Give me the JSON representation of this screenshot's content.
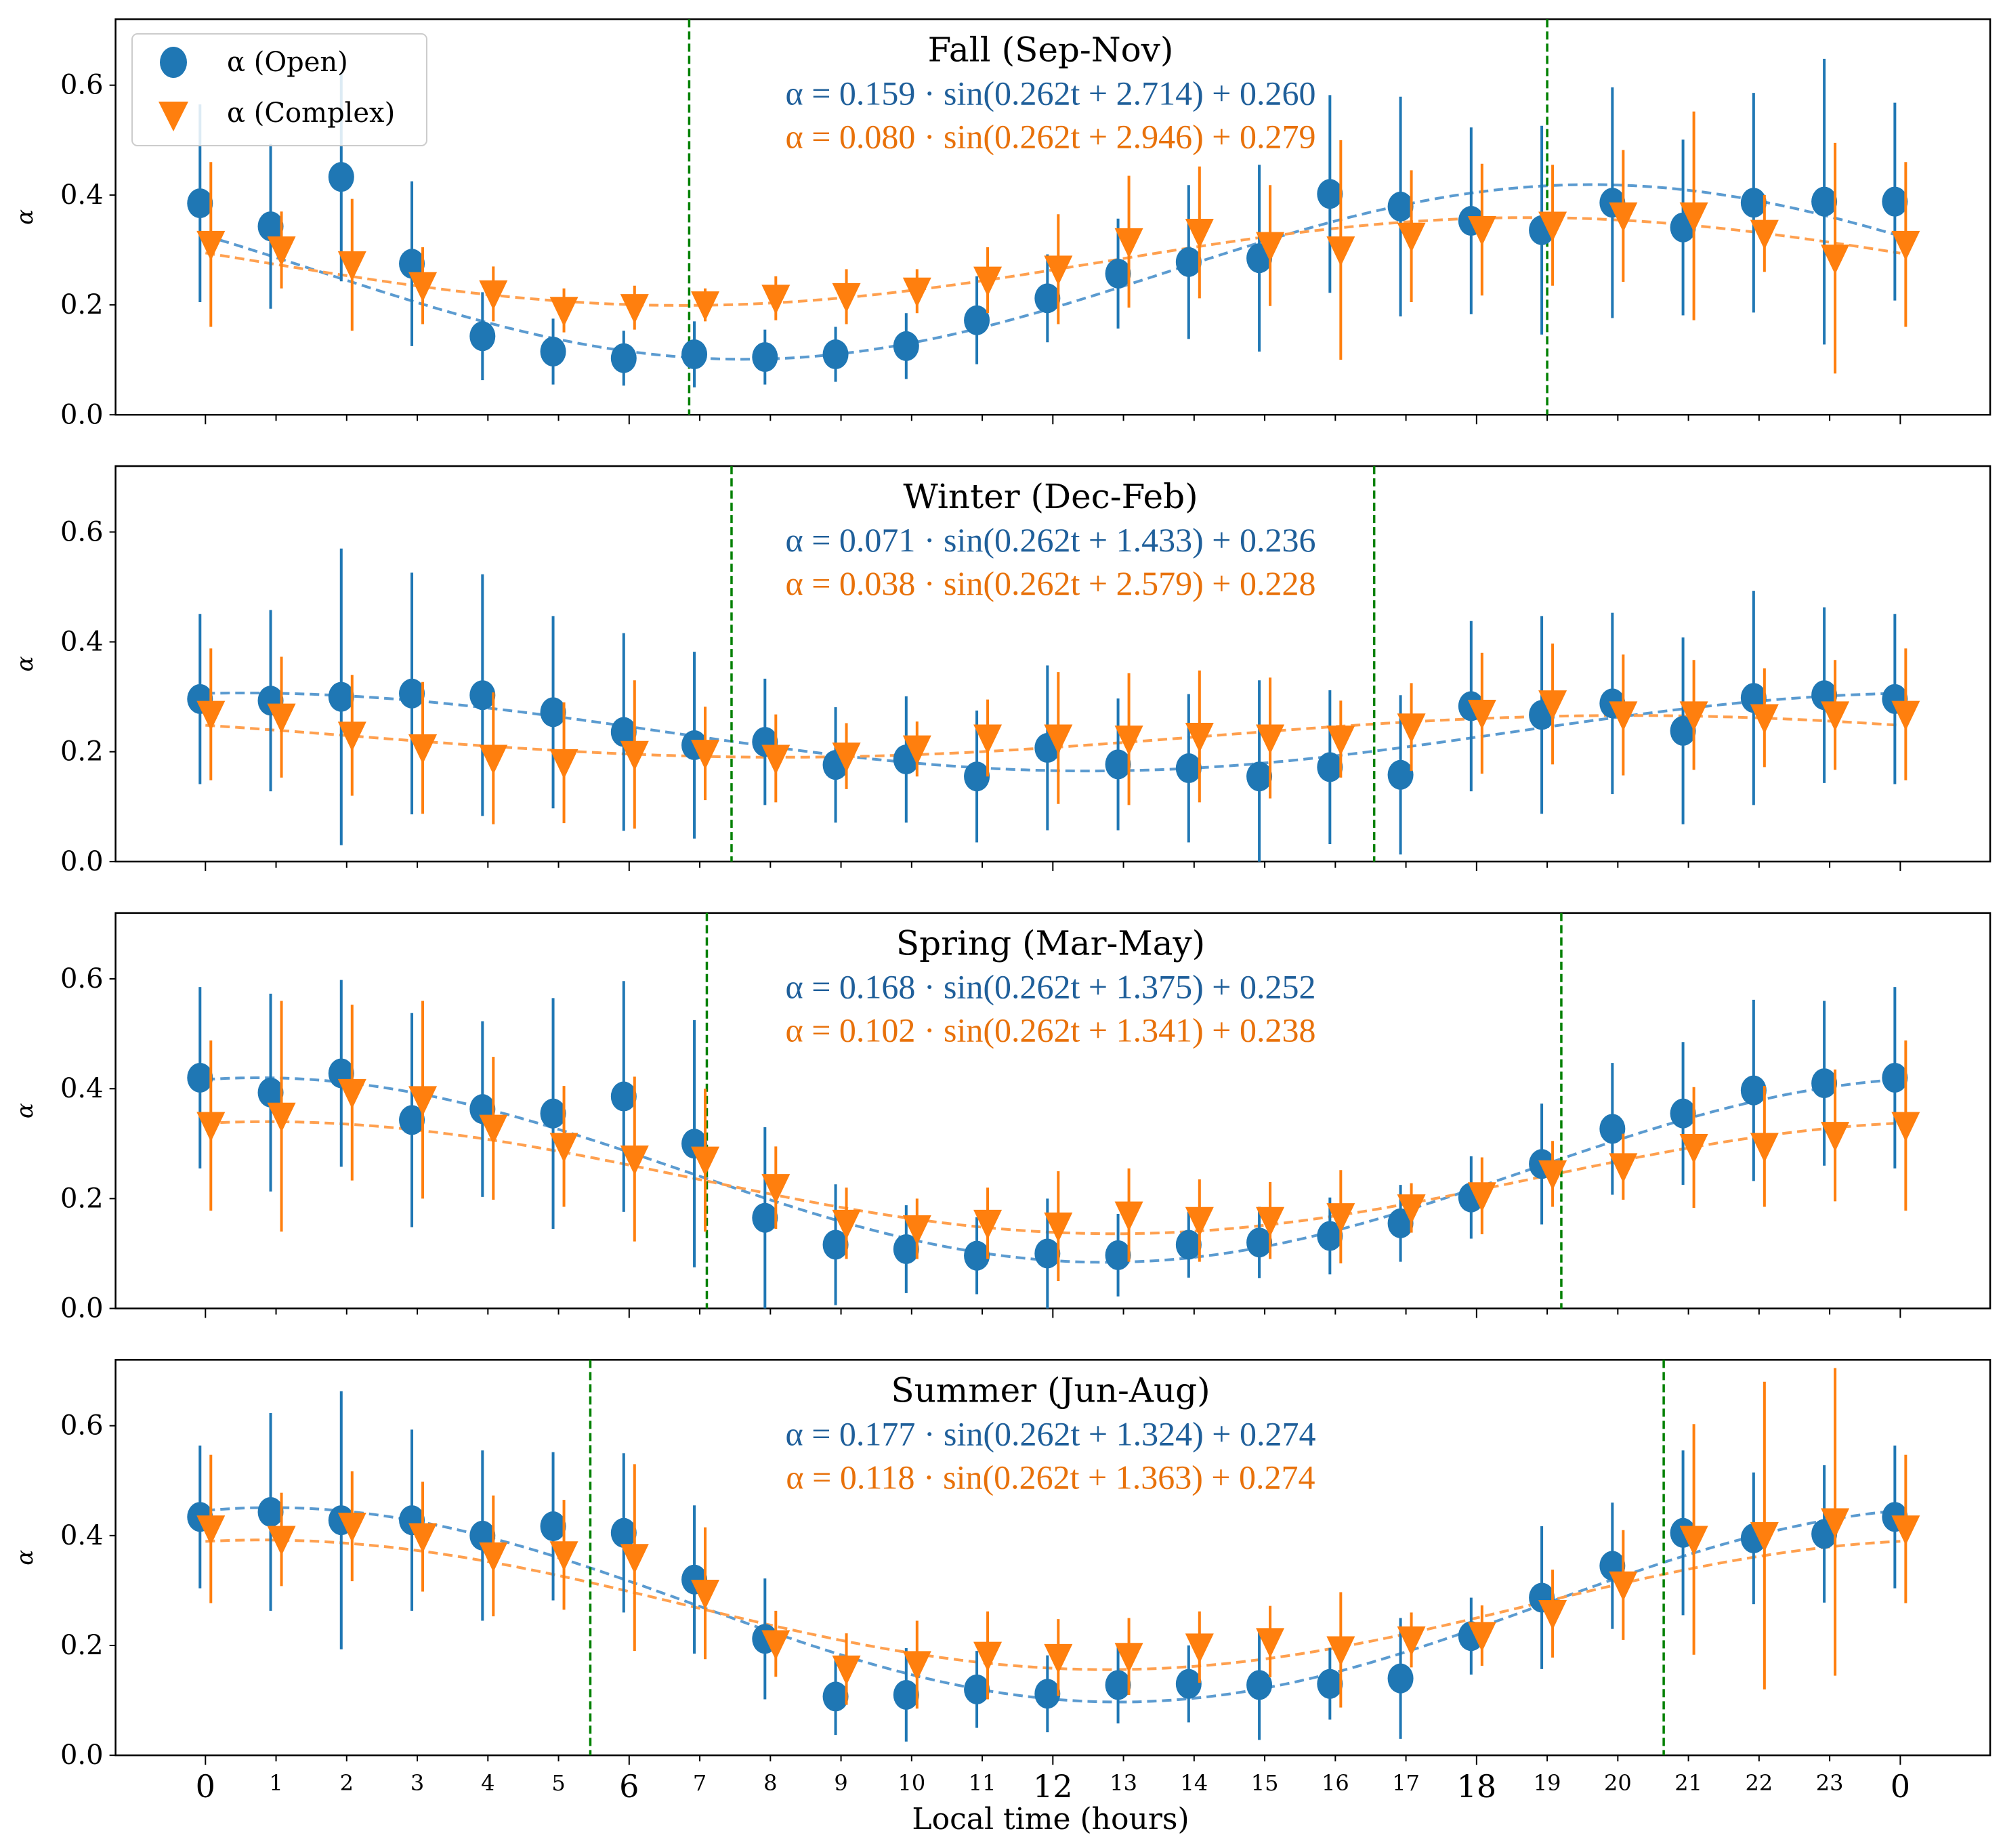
{
  "chart_data": {
    "type": "scatter",
    "xlabel": "Local time (hours)",
    "ylabel": "α",
    "ylim": [
      0,
      0.72
    ],
    "yticks": [
      "0.0",
      "0.2",
      "0.4",
      "0.6"
    ],
    "xtick_labels": [
      "0",
      "1",
      "2",
      "3",
      "4",
      "5",
      "6",
      "7",
      "8",
      "9",
      "10",
      "11",
      "12",
      "13",
      "14",
      "15",
      "16",
      "17",
      "18",
      "19",
      "20",
      "21",
      "22",
      "23",
      "0"
    ],
    "major_xticks": [
      "0",
      "6",
      "12",
      "18",
      "0"
    ],
    "legend": {
      "position": "top-left",
      "entries": [
        "α (Open)",
        "α (Complex)"
      ]
    },
    "colors": {
      "open": "#1f77b4",
      "complex": "#ff7f0e",
      "fit_open": "#5b9bd0",
      "fit_complex": "#ffa04f",
      "daylight": "#008000"
    },
    "panels": [
      {
        "title": "Fall (Sep-Nov)",
        "eq_open": "α = 0.159 · sin(0.262t + 2.714) + 0.260",
        "eq_complex": "α = 0.080 · sin(0.262t + 2.946) + 0.279",
        "fit_open": {
          "A": 0.159,
          "w": 0.262,
          "phi": 2.714,
          "c": 0.26
        },
        "fit_complex": {
          "A": 0.08,
          "w": 0.262,
          "phi": 2.946,
          "c": 0.279
        },
        "daylight_lines": [
          6.85,
          19.0
        ],
        "open": [
          0.385,
          0.343,
          0.433,
          0.275,
          0.143,
          0.115,
          0.103,
          0.11,
          0.105,
          0.11,
          0.125,
          0.172,
          0.212,
          0.257,
          0.278,
          0.285,
          0.402,
          0.379,
          0.353,
          0.336,
          0.386,
          0.341,
          0.386,
          0.388,
          0.388
        ],
        "open_err": [
          0.18,
          0.15,
          0.19,
          0.15,
          0.08,
          0.06,
          0.05,
          0.06,
          0.05,
          0.05,
          0.06,
          0.08,
          0.08,
          0.1,
          0.14,
          0.17,
          0.18,
          0.2,
          0.17,
          0.19,
          0.21,
          0.16,
          0.2,
          0.26,
          0.18
        ],
        "complex": [
          0.31,
          0.3,
          0.273,
          0.235,
          0.22,
          0.19,
          0.195,
          0.2,
          0.212,
          0.215,
          0.225,
          0.245,
          0.265,
          0.315,
          0.332,
          0.308,
          0.3,
          0.325,
          0.337,
          0.345,
          0.362,
          0.362,
          0.33,
          0.285,
          0.31
        ],
        "complex_err": [
          0.15,
          0.07,
          0.12,
          0.07,
          0.05,
          0.04,
          0.04,
          0.03,
          0.04,
          0.05,
          0.04,
          0.06,
          0.1,
          0.12,
          0.12,
          0.11,
          0.2,
          0.12,
          0.12,
          0.11,
          0.12,
          0.19,
          0.07,
          0.21,
          0.15
        ]
      },
      {
        "title": "Winter (Dec-Feb)",
        "eq_open": "α = 0.071 · sin(0.262t + 1.433) + 0.236",
        "eq_complex": "α = 0.038 · sin(0.262t + 2.579) + 0.228",
        "fit_open": {
          "A": 0.071,
          "w": 0.262,
          "phi": 1.433,
          "c": 0.236
        },
        "fit_complex": {
          "A": 0.038,
          "w": 0.262,
          "phi": 2.579,
          "c": 0.228
        },
        "daylight_lines": [
          7.45,
          16.55
        ],
        "open": [
          0.296,
          0.293,
          0.3,
          0.306,
          0.303,
          0.272,
          0.236,
          0.212,
          0.218,
          0.176,
          0.186,
          0.155,
          0.207,
          0.177,
          0.17,
          0.155,
          0.172,
          0.158,
          0.283,
          0.267,
          0.288,
          0.238,
          0.298,
          0.303,
          0.296
        ],
        "open_err": [
          0.155,
          0.165,
          0.27,
          0.22,
          0.22,
          0.175,
          0.18,
          0.17,
          0.115,
          0.105,
          0.115,
          0.12,
          0.15,
          0.12,
          0.135,
          0.175,
          0.14,
          0.145,
          0.155,
          0.18,
          0.165,
          0.17,
          0.195,
          0.16,
          0.155
        ],
        "complex": [
          0.268,
          0.263,
          0.23,
          0.207,
          0.188,
          0.18,
          0.195,
          0.197,
          0.188,
          0.192,
          0.205,
          0.225,
          0.225,
          0.223,
          0.228,
          0.225,
          0.223,
          0.245,
          0.27,
          0.287,
          0.267,
          0.267,
          0.262,
          0.267,
          0.268
        ],
        "complex_err": [
          0.12,
          0.11,
          0.11,
          0.12,
          0.12,
          0.11,
          0.135,
          0.085,
          0.08,
          0.06,
          0.05,
          0.07,
          0.12,
          0.12,
          0.12,
          0.11,
          0.07,
          0.08,
          0.11,
          0.11,
          0.11,
          0.1,
          0.09,
          0.1,
          0.12
        ]
      },
      {
        "title": "Spring (Mar-May)",
        "eq_open": "α = 0.168 · sin(0.262t + 1.375) + 0.252",
        "eq_complex": "α = 0.102 · sin(0.262t + 1.341) + 0.238",
        "fit_open": {
          "A": 0.168,
          "w": 0.262,
          "phi": 1.375,
          "c": 0.252
        },
        "fit_complex": {
          "A": 0.102,
          "w": 0.262,
          "phi": 1.341,
          "c": 0.238
        },
        "daylight_lines": [
          7.1,
          19.2
        ],
        "open": [
          0.42,
          0.393,
          0.428,
          0.343,
          0.363,
          0.355,
          0.386,
          0.3,
          0.165,
          0.116,
          0.108,
          0.096,
          0.1,
          0.097,
          0.116,
          0.12,
          0.132,
          0.155,
          0.202,
          0.263,
          0.327,
          0.355,
          0.397,
          0.41,
          0.42
        ],
        "open_err": [
          0.165,
          0.18,
          0.17,
          0.195,
          0.16,
          0.21,
          0.21,
          0.225,
          0.165,
          0.11,
          0.08,
          0.07,
          0.1,
          0.075,
          0.06,
          0.065,
          0.07,
          0.07,
          0.075,
          0.11,
          0.12,
          0.13,
          0.165,
          0.15,
          0.165
        ],
        "complex": [
          0.333,
          0.35,
          0.393,
          0.38,
          0.328,
          0.295,
          0.272,
          0.27,
          0.22,
          0.155,
          0.145,
          0.155,
          0.15,
          0.17,
          0.16,
          0.16,
          0.167,
          0.183,
          0.205,
          0.245,
          0.258,
          0.293,
          0.295,
          0.315,
          0.333
        ],
        "complex_err": [
          0.155,
          0.21,
          0.16,
          0.18,
          0.13,
          0.11,
          0.15,
          0.13,
          0.075,
          0.065,
          0.055,
          0.065,
          0.1,
          0.085,
          0.075,
          0.07,
          0.085,
          0.045,
          0.07,
          0.06,
          0.06,
          0.11,
          0.11,
          0.12,
          0.155
        ]
      },
      {
        "title": "Summer (Jun-Aug)",
        "eq_open": "α = 0.177 · sin(0.262t + 1.324) + 0.274",
        "eq_complex": "α = 0.118 · sin(0.262t + 1.363) + 0.274",
        "fit_open": {
          "A": 0.177,
          "w": 0.262,
          "phi": 1.324,
          "c": 0.274
        },
        "fit_complex": {
          "A": 0.118,
          "w": 0.262,
          "phi": 1.363,
          "c": 0.274
        },
        "daylight_lines": [
          5.45,
          20.65
        ],
        "open": [
          0.434,
          0.443,
          0.428,
          0.428,
          0.4,
          0.417,
          0.405,
          0.32,
          0.212,
          0.107,
          0.11,
          0.12,
          0.112,
          0.128,
          0.13,
          0.128,
          0.13,
          0.14,
          0.217,
          0.287,
          0.345,
          0.405,
          0.395,
          0.403,
          0.434
        ],
        "open_err": [
          0.13,
          0.18,
          0.235,
          0.165,
          0.155,
          0.135,
          0.145,
          0.135,
          0.11,
          0.07,
          0.085,
          0.07,
          0.07,
          0.07,
          0.07,
          0.1,
          0.065,
          0.11,
          0.07,
          0.13,
          0.115,
          0.15,
          0.12,
          0.125,
          0.13
        ],
        "complex": [
          0.412,
          0.393,
          0.417,
          0.398,
          0.363,
          0.365,
          0.36,
          0.295,
          0.203,
          0.157,
          0.165,
          0.182,
          0.178,
          0.18,
          0.197,
          0.207,
          0.192,
          0.21,
          0.218,
          0.258,
          0.31,
          0.393,
          0.4,
          0.425,
          0.412
        ],
        "complex_err": [
          0.135,
          0.085,
          0.1,
          0.1,
          0.11,
          0.1,
          0.17,
          0.12,
          0.06,
          0.065,
          0.08,
          0.08,
          0.07,
          0.07,
          0.065,
          0.065,
          0.105,
          0.05,
          0.055,
          0.08,
          0.1,
          0.21,
          0.28,
          0.28,
          0.135
        ]
      }
    ]
  }
}
